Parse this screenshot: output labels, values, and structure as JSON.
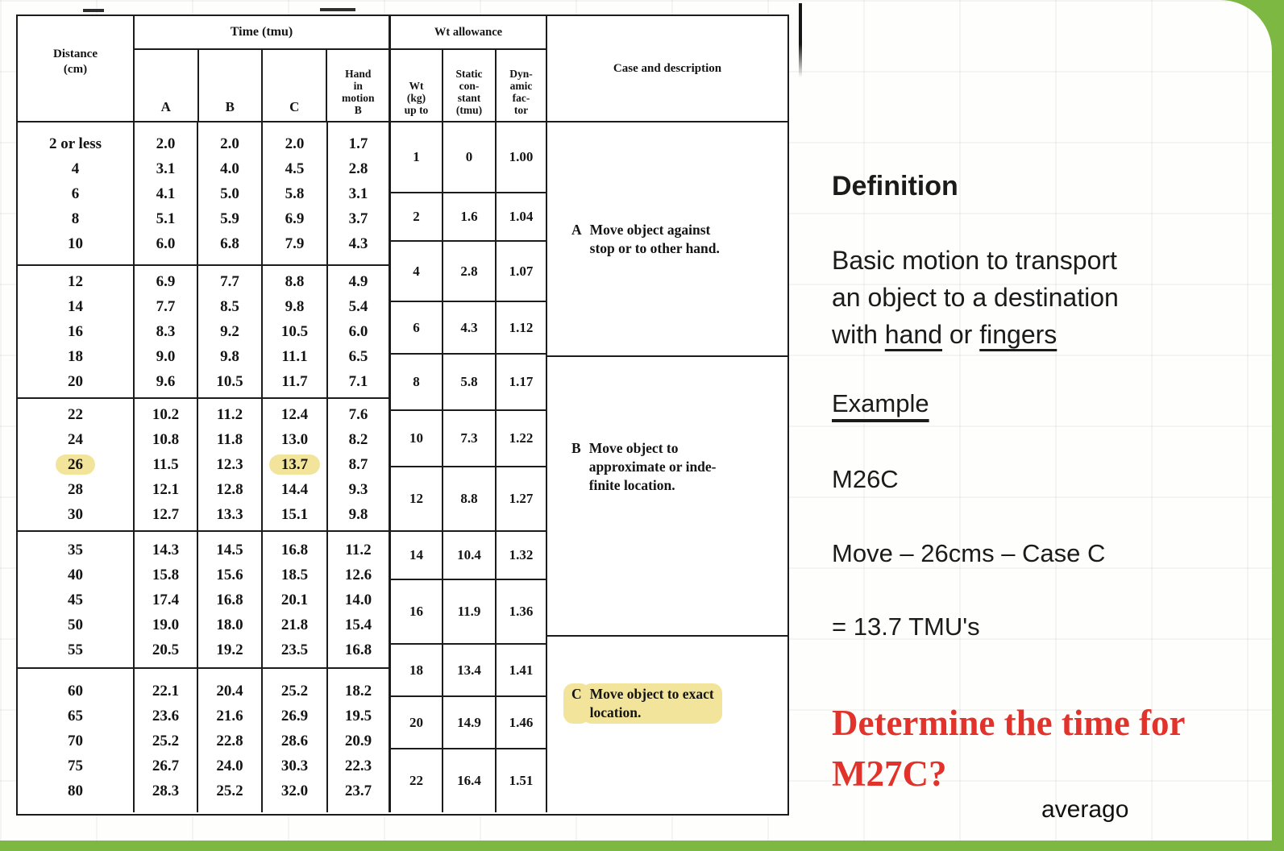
{
  "colors": {
    "accent_green": "#7cb842",
    "highlight_yellow": "#f3e49b",
    "question_red": "#e1332b"
  },
  "table": {
    "title_row": {
      "time": "Time (tmu)",
      "wt": "Wt allowance"
    },
    "headers": {
      "distance": "Distance\n(cm)",
      "a": "A",
      "b": "B",
      "c": "C",
      "hand": "Hand\nin\nmotion\nB",
      "wt_kg": "Wt\n(kg)\nup to",
      "static": "Static\ncon-\nstant\n(tmu)",
      "dynamic": "Dyn-\namic\nfac-\ntor",
      "case": "Case and description"
    },
    "groups": [
      {
        "rows": [
          {
            "d": "2 or less",
            "a": "2.0",
            "b": "2.0",
            "c": "2.0",
            "h": "1.7"
          },
          {
            "d": "4",
            "a": "3.1",
            "b": "4.0",
            "c": "4.5",
            "h": "2.8"
          },
          {
            "d": "6",
            "a": "4.1",
            "b": "5.0",
            "c": "5.8",
            "h": "3.1"
          },
          {
            "d": "8",
            "a": "5.1",
            "b": "5.9",
            "c": "6.9",
            "h": "3.7"
          },
          {
            "d": "10",
            "a": "6.0",
            "b": "6.8",
            "c": "7.9",
            "h": "4.3"
          }
        ]
      },
      {
        "rows": [
          {
            "d": "12",
            "a": "6.9",
            "b": "7.7",
            "c": "8.8",
            "h": "4.9"
          },
          {
            "d": "14",
            "a": "7.7",
            "b": "8.5",
            "c": "9.8",
            "h": "5.4"
          },
          {
            "d": "16",
            "a": "8.3",
            "b": "9.2",
            "c": "10.5",
            "h": "6.0"
          },
          {
            "d": "18",
            "a": "9.0",
            "b": "9.8",
            "c": "11.1",
            "h": "6.5"
          },
          {
            "d": "20",
            "a": "9.6",
            "b": "10.5",
            "c": "11.7",
            "h": "7.1"
          }
        ]
      },
      {
        "rows": [
          {
            "d": "22",
            "a": "10.2",
            "b": "11.2",
            "c": "12.4",
            "h": "7.6"
          },
          {
            "d": "24",
            "a": "10.8",
            "b": "11.8",
            "c": "13.0",
            "h": "8.2"
          },
          {
            "d": "26",
            "a": "11.5",
            "b": "12.3",
            "c": "13.7",
            "h": "8.7"
          },
          {
            "d": "28",
            "a": "12.1",
            "b": "12.8",
            "c": "14.4",
            "h": "9.3"
          },
          {
            "d": "30",
            "a": "12.7",
            "b": "13.3",
            "c": "15.1",
            "h": "9.8"
          }
        ]
      },
      {
        "rows": [
          {
            "d": "35",
            "a": "14.3",
            "b": "14.5",
            "c": "16.8",
            "h": "11.2"
          },
          {
            "d": "40",
            "a": "15.8",
            "b": "15.6",
            "c": "18.5",
            "h": "12.6"
          },
          {
            "d": "45",
            "a": "17.4",
            "b": "16.8",
            "c": "20.1",
            "h": "14.0"
          },
          {
            "d": "50",
            "a": "19.0",
            "b": "18.0",
            "c": "21.8",
            "h": "15.4"
          },
          {
            "d": "55",
            "a": "20.5",
            "b": "19.2",
            "c": "23.5",
            "h": "16.8"
          }
        ]
      },
      {
        "rows": [
          {
            "d": "60",
            "a": "22.1",
            "b": "20.4",
            "c": "25.2",
            "h": "18.2"
          },
          {
            "d": "65",
            "a": "23.6",
            "b": "21.6",
            "c": "26.9",
            "h": "19.5"
          },
          {
            "d": "70",
            "a": "25.2",
            "b": "22.8",
            "c": "28.6",
            "h": "20.9"
          },
          {
            "d": "75",
            "a": "26.7",
            "b": "24.0",
            "c": "30.3",
            "h": "22.3"
          },
          {
            "d": "80",
            "a": "28.3",
            "b": "25.2",
            "c": "32.0",
            "h": "23.7"
          }
        ]
      }
    ],
    "wt_rows": [
      {
        "kg": "1",
        "sc": "0",
        "df": "1.00"
      },
      {
        "kg": "2",
        "sc": "1.6",
        "df": "1.04"
      },
      {
        "kg": "4",
        "sc": "2.8",
        "df": "1.07"
      },
      {
        "kg": "6",
        "sc": "4.3",
        "df": "1.12"
      },
      {
        "kg": "8",
        "sc": "5.8",
        "df": "1.17"
      },
      {
        "kg": "10",
        "sc": "7.3",
        "df": "1.22"
      },
      {
        "kg": "12",
        "sc": "8.8",
        "df": "1.27"
      },
      {
        "kg": "14",
        "sc": "10.4",
        "df": "1.32"
      },
      {
        "kg": "16",
        "sc": "11.9",
        "df": "1.36"
      },
      {
        "kg": "18",
        "sc": "13.4",
        "df": "1.41"
      },
      {
        "kg": "20",
        "sc": "14.9",
        "df": "1.46"
      },
      {
        "kg": "22",
        "sc": "16.4",
        "df": "1.51"
      }
    ],
    "cases": [
      {
        "letter": "A",
        "text": "Move object against\nstop or to other hand."
      },
      {
        "letter": "B",
        "text": "Move object to\napproximate or inde-\nfinite location."
      },
      {
        "letter": "C",
        "text": "Move object to exact\nlocation."
      }
    ]
  },
  "panel": {
    "definition_heading": "Definition",
    "definition_line1": "Basic motion to transport",
    "definition_line2": "an object to a destination",
    "definition_line3_pre": "with ",
    "definition_hand": "hand",
    "definition_mid": " or ",
    "definition_fingers": "fingers",
    "example_heading": "Example",
    "example_code": "M26C",
    "example_move": "Move – 26cms – Case C",
    "example_result": "= 13.7 TMU's",
    "question": "Determine the time for\nM27C?",
    "watermark": "averago"
  }
}
